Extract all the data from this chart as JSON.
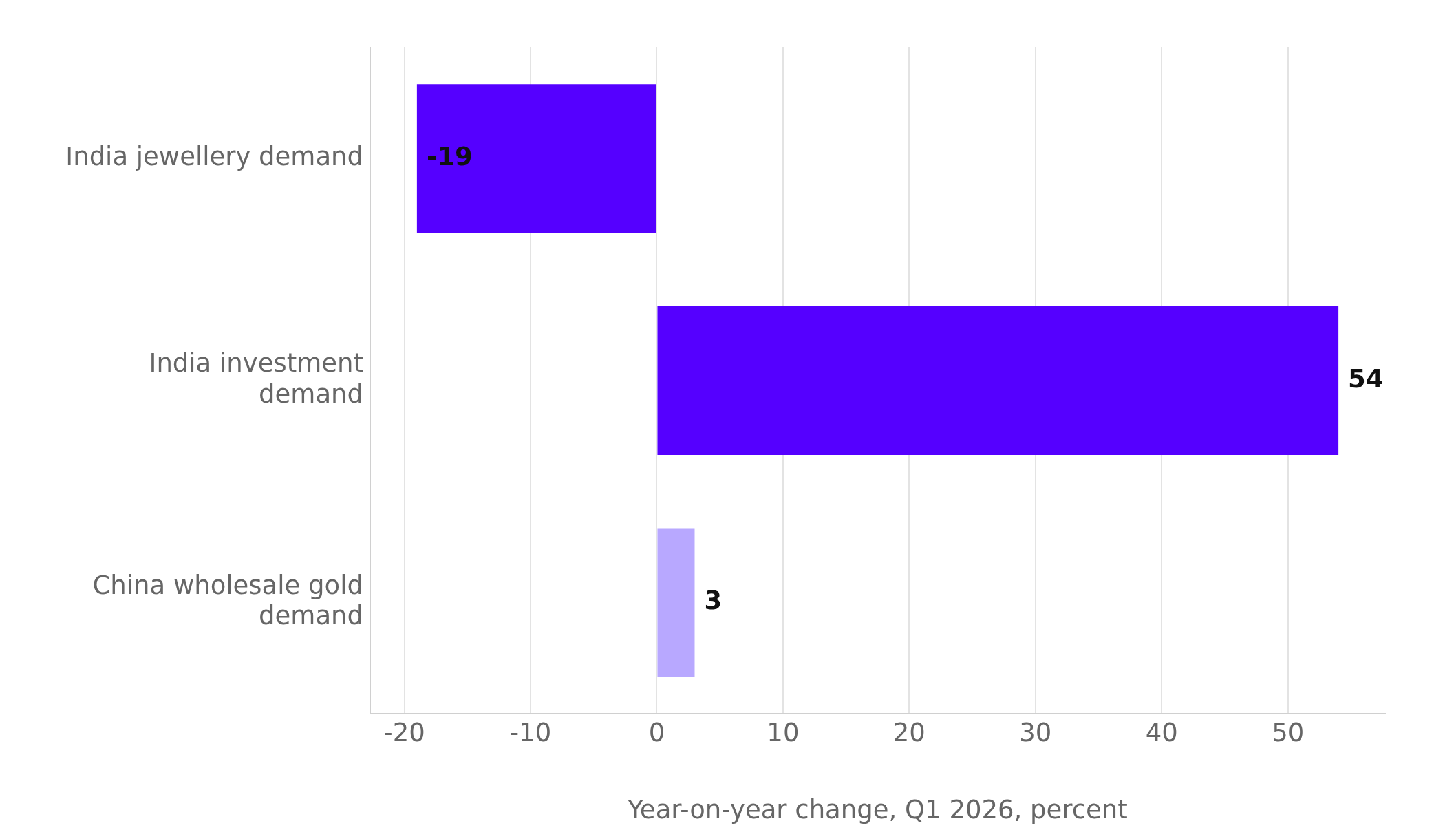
{
  "chart_data": {
    "type": "bar",
    "orientation": "horizontal",
    "xlabel": "Year-on-year change, Q1 2026, percent",
    "categories": [
      "India jewellery demand",
      "India investment\ndemand",
      "China wholesale gold\ndemand"
    ],
    "values": [
      -19,
      54,
      3
    ],
    "colors": [
      "#5500ff",
      "#5500ff",
      "#b8a8ff"
    ],
    "xlim": [
      -22.7,
      57.7
    ],
    "xticks": [
      -20,
      -10,
      0,
      10,
      20,
      30,
      40,
      50
    ],
    "grid": "x",
    "data_labels": true
  }
}
